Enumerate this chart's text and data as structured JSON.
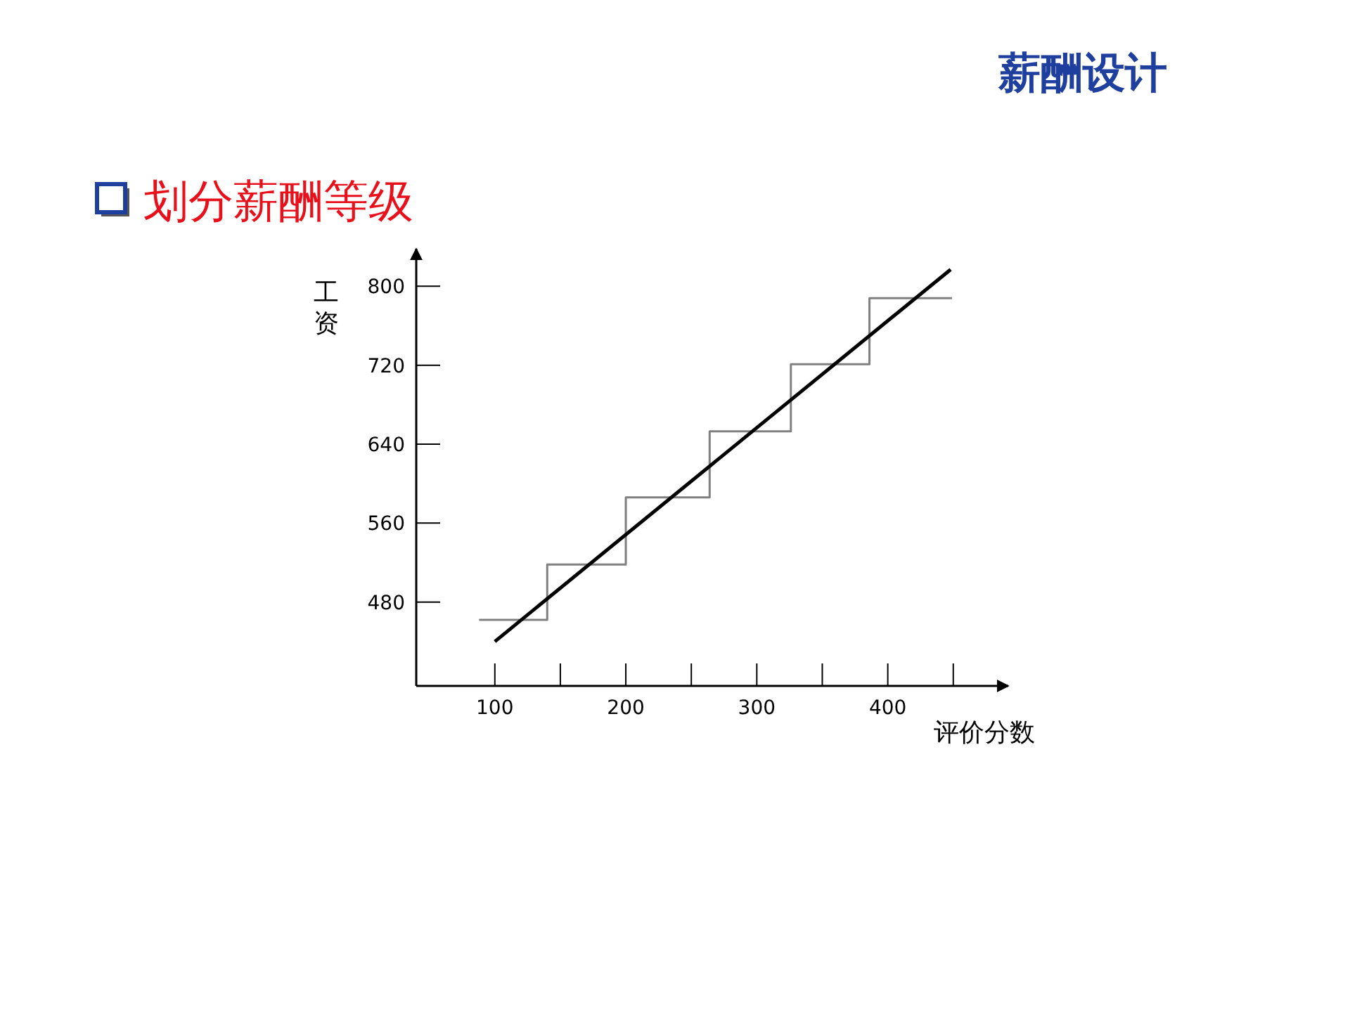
{
  "chart_data": {
    "type": "line",
    "title": "薪酬设计",
    "subtitle": "划分薪酬等级",
    "xlabel": "评价分数",
    "ylabel": "工资",
    "xlim": [
      40,
      492
    ],
    "ylim": [
      395,
      838
    ],
    "xticks": [
      100,
      {
        "value": 150,
        "label": null
      },
      200,
      {
        "value": 250,
        "label": null
      },
      300,
      {
        "value": 350,
        "label": null
      },
      400,
      {
        "value": 450,
        "label": null
      }
    ],
    "yticks": [
      480,
      560,
      640,
      720,
      800
    ],
    "series": [
      {
        "type": "step",
        "color": "#808080",
        "x": [
          88,
          140,
          200,
          264,
          326,
          386,
          449
        ],
        "values": [
          462,
          518,
          586,
          653,
          721,
          788,
          788
        ]
      },
      {
        "type": "line",
        "color": "#000000",
        "x": [
          100,
          448
        ],
        "values": [
          440,
          817
        ]
      }
    ]
  }
}
